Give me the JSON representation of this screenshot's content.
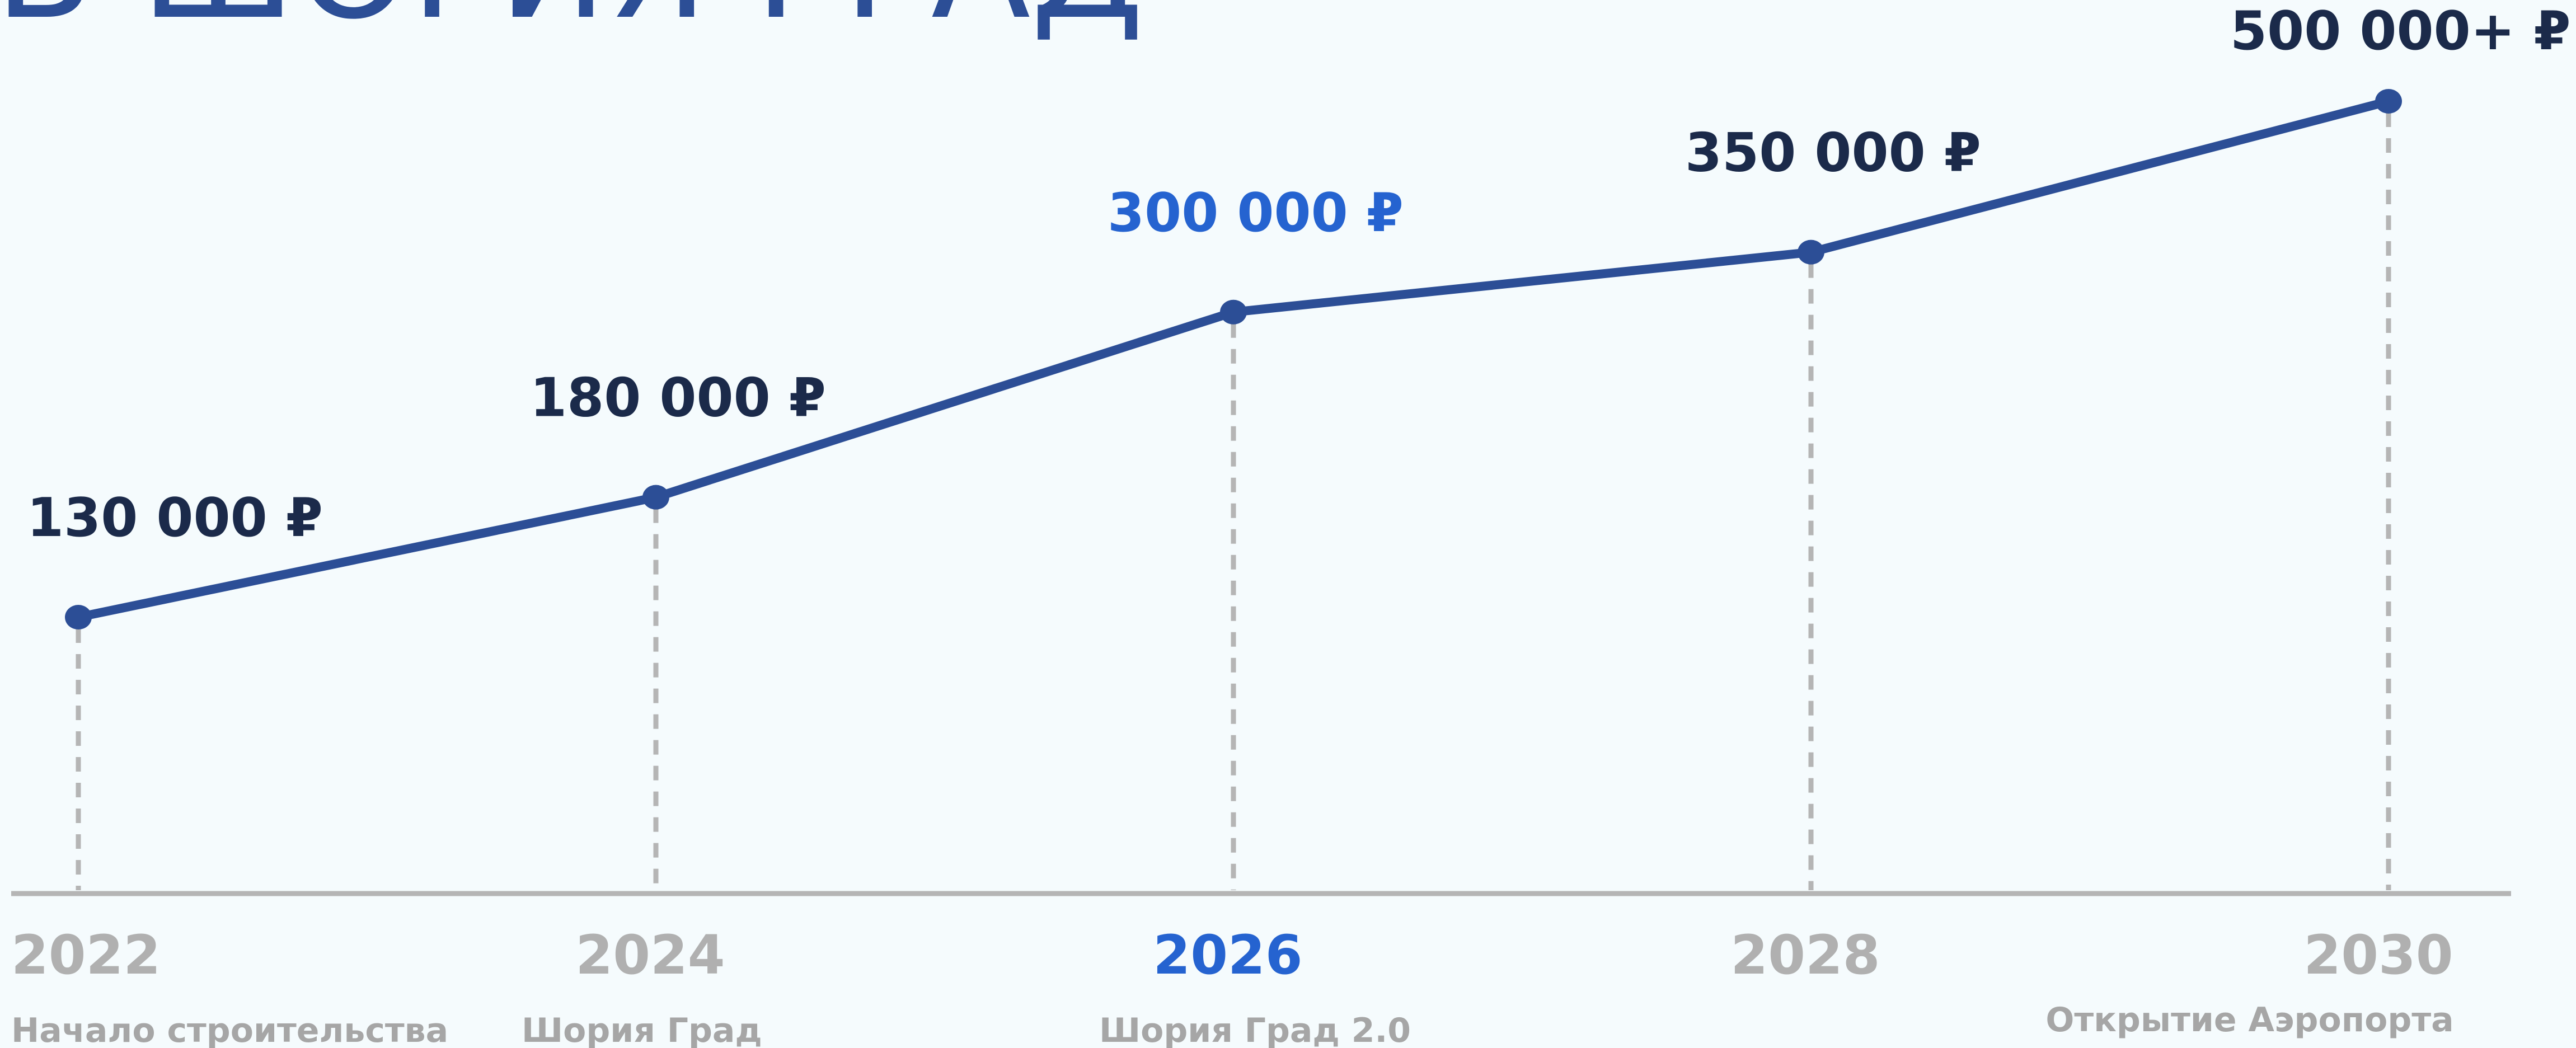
{
  "colors": {
    "background": "#f5fbfd",
    "line": "#2c4e96",
    "value_label": "#1b2a4a",
    "highlight": "#2563d0",
    "axis": "#b5b5b5",
    "muted_text": "#b0b0b0",
    "caption_text": "#a6a6a6"
  },
  "chart_data": {
    "type": "line",
    "title": "В ШОРИЯ ГРАД",
    "categories": [
      "2022",
      "2024",
      "2026",
      "2028",
      "2030"
    ],
    "x": [
      2022,
      2024,
      2026,
      2028,
      2030
    ],
    "values": [
      130000,
      180000,
      300000,
      350000,
      500000
    ],
    "value_labels": [
      "130 000 ₽",
      "180 000 ₽",
      "300 000 ₽",
      "350 000 ₽",
      "500 000+ ₽"
    ],
    "milestones": [
      "Начало строительства",
      "Шория Град",
      "Шория Град 2.0",
      "",
      "Открытие Аэропорта"
    ],
    "highlight_index": 2,
    "xlabel": "",
    "ylabel": "",
    "ylim": [
      95000,
      515000
    ],
    "grid": false,
    "legend": "none"
  }
}
